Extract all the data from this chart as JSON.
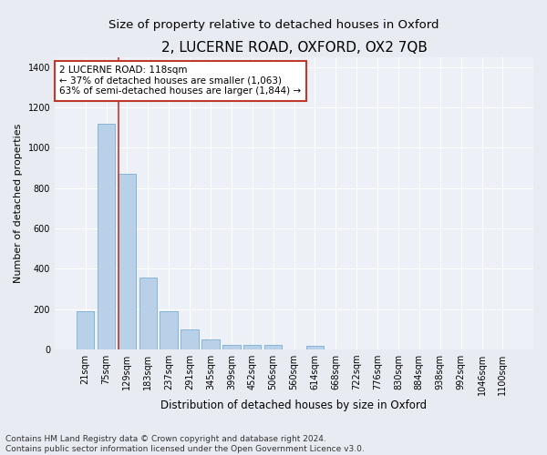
{
  "title": "2, LUCERNE ROAD, OXFORD, OX2 7QB",
  "subtitle": "Size of property relative to detached houses in Oxford",
  "xlabel": "Distribution of detached houses by size in Oxford",
  "ylabel": "Number of detached properties",
  "categories": [
    "21sqm",
    "75sqm",
    "129sqm",
    "183sqm",
    "237sqm",
    "291sqm",
    "345sqm",
    "399sqm",
    "452sqm",
    "506sqm",
    "560sqm",
    "614sqm",
    "668sqm",
    "722sqm",
    "776sqm",
    "830sqm",
    "884sqm",
    "938sqm",
    "992sqm",
    "1046sqm",
    "1100sqm"
  ],
  "values": [
    190,
    1120,
    870,
    355,
    190,
    97,
    50,
    22,
    20,
    20,
    0,
    18,
    0,
    0,
    0,
    0,
    0,
    0,
    0,
    0,
    0
  ],
  "bar_color": "#b8d0e8",
  "bar_edge_color": "#7aafd4",
  "vline_x_idx": 2,
  "vline_color": "#c0392b",
  "annotation_text": "2 LUCERNE ROAD: 118sqm\n← 37% of detached houses are smaller (1,063)\n63% of semi-detached houses are larger (1,844) →",
  "annotation_box_color": "#ffffff",
  "annotation_border_color": "#c0392b",
  "ylim": [
    0,
    1450
  ],
  "yticks": [
    0,
    200,
    400,
    600,
    800,
    1000,
    1200,
    1400
  ],
  "bg_color": "#e8ecf2",
  "plot_bg_color": "#edf0f7",
  "footer": "Contains HM Land Registry data © Crown copyright and database right 2024.\nContains public sector information licensed under the Open Government Licence v3.0.",
  "title_fontsize": 11,
  "subtitle_fontsize": 9.5,
  "xlabel_fontsize": 8.5,
  "ylabel_fontsize": 8,
  "tick_fontsize": 7,
  "annotation_fontsize": 7.5,
  "footer_fontsize": 6.5
}
